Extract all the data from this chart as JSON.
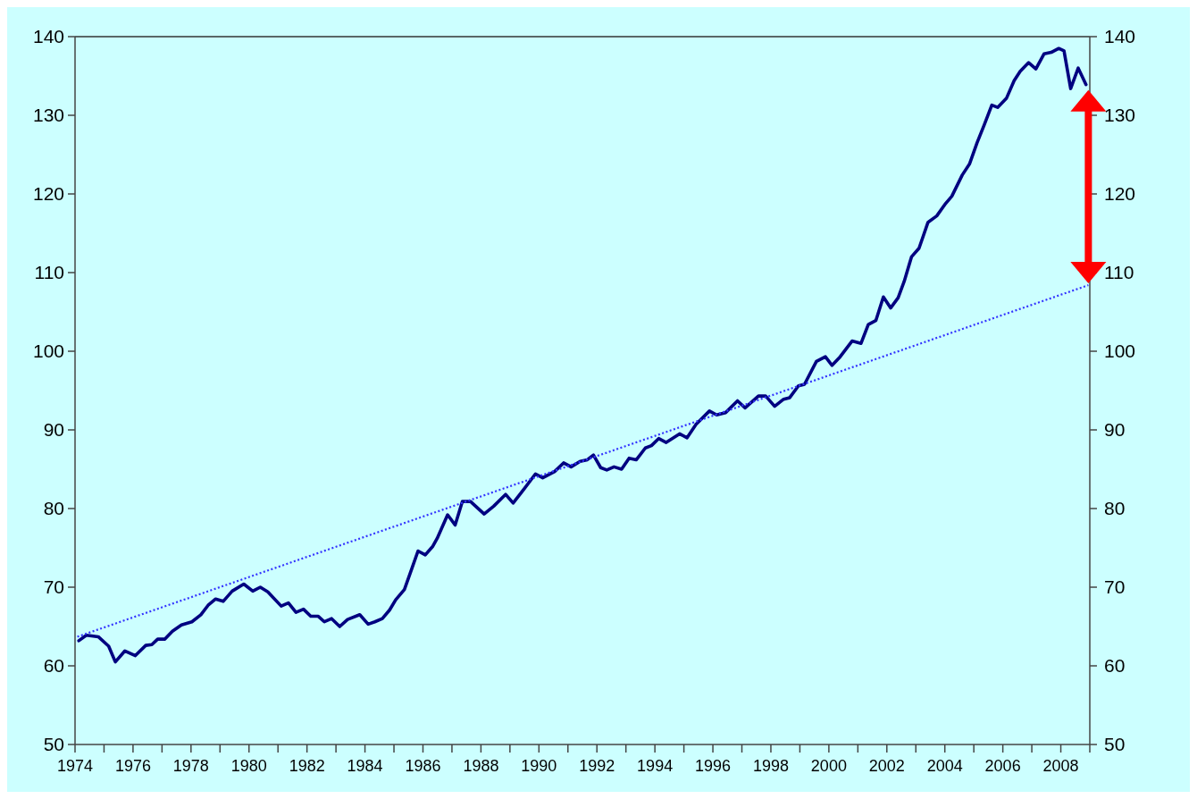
{
  "chart_data": {
    "type": "line",
    "xlim": [
      1974,
      2009
    ],
    "xticks": [
      {
        "value": 1974,
        "label": "1974"
      },
      {
        "value": 1975,
        "label": null
      },
      {
        "value": 1976,
        "label": "1976"
      },
      {
        "value": 1977,
        "label": null
      },
      {
        "value": 1978,
        "label": "1978"
      },
      {
        "value": 1979,
        "label": null
      },
      {
        "value": 1980,
        "label": "1980"
      },
      {
        "value": 1981,
        "label": null
      },
      {
        "value": 1982,
        "label": "1982"
      },
      {
        "value": 1983,
        "label": null
      },
      {
        "value": 1984,
        "label": "1984"
      },
      {
        "value": 1985,
        "label": null
      },
      {
        "value": 1986,
        "label": "1986"
      },
      {
        "value": 1987,
        "label": null
      },
      {
        "value": 1988,
        "label": "1988"
      },
      {
        "value": 1989,
        "label": null
      },
      {
        "value": 1990,
        "label": "1990"
      },
      {
        "value": 1991,
        "label": null
      },
      {
        "value": 1992,
        "label": "1992"
      },
      {
        "value": 1993,
        "label": null
      },
      {
        "value": 1994,
        "label": "1994"
      },
      {
        "value": 1995,
        "label": null
      },
      {
        "value": 1996,
        "label": "1996"
      },
      {
        "value": 1997,
        "label": null
      },
      {
        "value": 1998,
        "label": "1998"
      },
      {
        "value": 1999,
        "label": null
      },
      {
        "value": 2000,
        "label": "2000"
      },
      {
        "value": 2001,
        "label": null
      },
      {
        "value": 2002,
        "label": "2002"
      },
      {
        "value": 2003,
        "label": null
      },
      {
        "value": 2004,
        "label": "2004"
      },
      {
        "value": 2005,
        "label": null
      },
      {
        "value": 2006,
        "label": "2006"
      },
      {
        "value": 2007,
        "label": null
      },
      {
        "value": 2008,
        "label": "2008"
      },
      {
        "value": 2009,
        "label": null
      }
    ],
    "ylim": [
      50,
      140
    ],
    "yticks": [
      50,
      60,
      70,
      80,
      90,
      100,
      110,
      120,
      130,
      140
    ],
    "y2lim": [
      50,
      140
    ],
    "y2ticks": [
      50,
      60,
      70,
      80,
      90,
      100,
      110,
      120,
      130,
      140
    ],
    "grid": false,
    "marker": "none",
    "series": [
      {
        "color": "#000080",
        "line_style": "solid",
        "x": [
          1974.13,
          1974.39,
          1974.8,
          1975.16,
          1975.39,
          1975.72,
          1976.08,
          1976.44,
          1976.65,
          1976.85,
          1977.1,
          1977.36,
          1977.67,
          1978.03,
          1978.34,
          1978.59,
          1978.85,
          1979.11,
          1979.42,
          1979.82,
          1980.13,
          1980.39,
          1980.65,
          1981.11,
          1981.36,
          1981.62,
          1981.88,
          1982.13,
          1982.39,
          1982.6,
          1982.85,
          1983.13,
          1983.4,
          1983.82,
          1984.11,
          1984.34,
          1984.6,
          1984.85,
          1985.06,
          1985.36,
          1985.62,
          1985.83,
          1986.08,
          1986.34,
          1986.49,
          1986.85,
          1987.11,
          1987.36,
          1987.64,
          1988.11,
          1988.44,
          1988.85,
          1989.11,
          1989.47,
          1989.88,
          1990.13,
          1990.54,
          1990.85,
          1991.11,
          1991.42,
          1991.67,
          1991.88,
          1992.13,
          1992.34,
          1992.59,
          1992.85,
          1993.11,
          1993.36,
          1993.67,
          1993.88,
          1994.13,
          1994.39,
          1994.85,
          1995.11,
          1995.42,
          1995.88,
          1996.13,
          1996.44,
          1996.85,
          1997.11,
          1997.57,
          1997.82,
          1998.13,
          1998.44,
          1998.65,
          1998.95,
          1999.16,
          1999.57,
          1999.88,
          2000.11,
          2000.39,
          2000.8,
          2001.11,
          2001.36,
          2001.62,
          2001.88,
          2002.13,
          2002.39,
          2002.6,
          2002.85,
          2003.11,
          2003.42,
          2003.72,
          2004.03,
          2004.24,
          2004.6,
          2004.85,
          2005.11,
          2005.36,
          2005.62,
          2005.82,
          2006.13,
          2006.39,
          2006.6,
          2006.89,
          2007.14,
          2007.42,
          2007.67,
          2007.93,
          2008.11,
          2008.34,
          2008.6,
          2008.87
        ],
        "values": [
          63.2,
          63.9,
          63.7,
          62.5,
          60.5,
          61.9,
          61.3,
          62.6,
          62.7,
          63.4,
          63.4,
          64.4,
          65.2,
          65.6,
          66.5,
          67.7,
          68.5,
          68.2,
          69.5,
          70.4,
          69.5,
          70.0,
          69.4,
          67.6,
          68.0,
          66.8,
          67.2,
          66.3,
          66.3,
          65.6,
          66.0,
          65.0,
          65.9,
          66.5,
          65.3,
          65.6,
          66.0,
          67.1,
          68.4,
          69.7,
          72.4,
          74.6,
          74.1,
          75.2,
          76.2,
          79.2,
          77.9,
          80.9,
          80.9,
          79.3,
          80.3,
          81.8,
          80.7,
          82.4,
          84.4,
          83.9,
          84.7,
          85.8,
          85.3,
          86.0,
          86.2,
          86.8,
          85.2,
          84.9,
          85.3,
          85.0,
          86.4,
          86.2,
          87.7,
          88.0,
          88.9,
          88.4,
          89.5,
          89.0,
          90.7,
          92.4,
          91.9,
          92.2,
          93.7,
          92.8,
          94.3,
          94.3,
          93.0,
          93.9,
          94.1,
          95.6,
          95.8,
          98.7,
          99.3,
          98.2,
          99.3,
          101.3,
          101.0,
          103.4,
          103.9,
          106.9,
          105.5,
          106.8,
          108.9,
          112.0,
          113.1,
          116.4,
          117.2,
          118.8,
          119.7,
          122.4,
          123.8,
          126.5,
          128.8,
          131.3,
          131.0,
          132.2,
          134.4,
          135.6,
          136.7,
          135.9,
          137.8,
          138.0,
          138.5,
          138.2,
          133.4,
          136.0,
          133.9
        ]
      },
      {
        "color": "#3333ff",
        "line_style": "dotted",
        "x": [
          1974.08,
          2008.95
        ],
        "values": [
          63.7,
          108.4
        ]
      }
    ]
  }
}
